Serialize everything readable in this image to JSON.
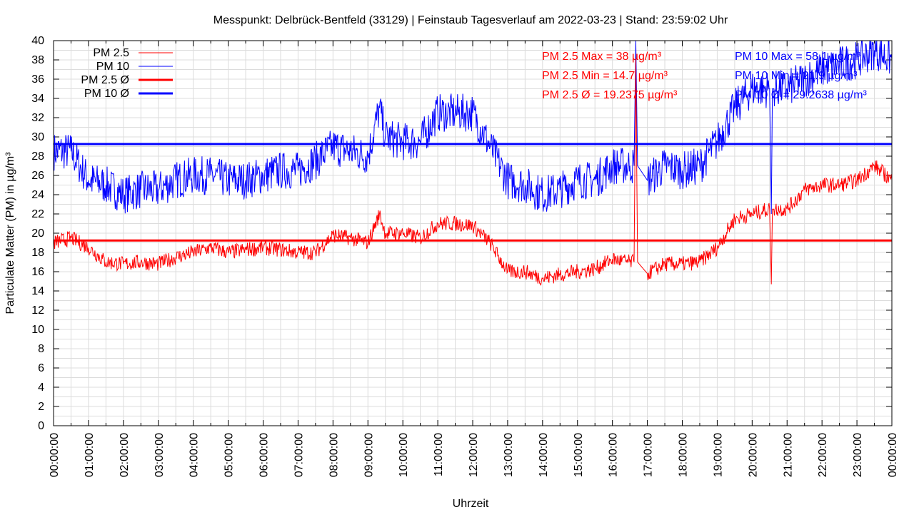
{
  "chart_data": {
    "type": "line",
    "title": "Messpunkt: Delbrück-Bentfeld (33129) | Feinstaub Tagesverlauf am 2022-03-23 | Stand: 23:59:02 Uhr",
    "xlabel": "Uhrzeit",
    "ylabel": "Particulate Matter (PM) in µg/m³",
    "ylim": [
      0,
      40
    ],
    "xlim_hours": [
      0,
      24
    ],
    "yticks": [
      "0",
      "2",
      "4",
      "6",
      "8",
      "10",
      "12",
      "14",
      "16",
      "18",
      "20",
      "22",
      "24",
      "26",
      "28",
      "30",
      "32",
      "34",
      "36",
      "38",
      "40"
    ],
    "xticks": [
      "00:00:00",
      "01:00:00",
      "02:00:00",
      "03:00:00",
      "04:00:00",
      "05:00:00",
      "06:00:00",
      "07:00:00",
      "08:00:00",
      "09:00:00",
      "10:00:00",
      "11:00:00",
      "12:00:00",
      "13:00:00",
      "14:00:00",
      "15:00:00",
      "16:00:00",
      "17:00:00",
      "18:00:00",
      "19:00:00",
      "20:00:00",
      "21:00:00",
      "22:00:00",
      "23:00:00",
      "00:00:00"
    ],
    "grid": true,
    "legend_position": "top-left",
    "legend": [
      "PM 2.5",
      "PM 10",
      "PM 2.5 Ø",
      "PM 10 Ø"
    ],
    "colors": {
      "pm25": "#ff0000",
      "pm10": "#0000ff"
    },
    "series": [
      {
        "name": "PM 2.5",
        "x": [
          0,
          0.5,
          1,
          1.5,
          2,
          2.5,
          3,
          3.5,
          4,
          4.5,
          5,
          5.5,
          6,
          6.5,
          7,
          7.5,
          8,
          8.5,
          9,
          9.33,
          9.5,
          10,
          10.5,
          11,
          11.5,
          12,
          12.5,
          13,
          13.5,
          14,
          14.5,
          15,
          15.5,
          16,
          16.5,
          16.62,
          16.67,
          16.72,
          17,
          17.5,
          18,
          18.5,
          19,
          19.5,
          20,
          20.5,
          20.55,
          20.58,
          20.62,
          21,
          21.5,
          22,
          22.5,
          23,
          23.5,
          24
        ],
        "values": [
          19,
          19.5,
          18.5,
          17,
          16.8,
          17,
          16.8,
          17.5,
          18,
          18.5,
          18,
          18.3,
          18.5,
          18.3,
          18,
          18,
          19.8,
          19.5,
          19,
          22,
          20,
          20,
          19.5,
          21,
          21,
          20.8,
          19,
          16,
          16,
          15.3,
          15.7,
          16,
          16.3,
          17.3,
          17,
          17,
          38,
          17,
          15.8,
          16.8,
          16.8,
          17,
          18.5,
          21.5,
          22,
          22.5,
          14.7,
          22.5,
          22.5,
          22.5,
          24.5,
          25,
          25,
          25.5,
          27,
          25.5
        ]
      },
      {
        "name": "PM 10",
        "x": [
          0,
          0.5,
          1,
          1.5,
          2,
          2.5,
          3,
          3.5,
          4,
          4.5,
          5,
          5.5,
          6,
          6.5,
          7,
          7.5,
          8,
          8.5,
          9,
          9.33,
          9.5,
          10,
          10.5,
          11,
          11.5,
          12,
          12.5,
          13,
          13.5,
          14,
          14.5,
          15,
          15.5,
          16,
          16.5,
          16.62,
          16.67,
          16.72,
          17,
          17.5,
          18,
          18.5,
          19,
          19.5,
          20,
          20.5,
          20.55,
          20.58,
          20.62,
          21,
          21.5,
          22,
          22.5,
          23,
          23.5,
          24
        ],
        "values": [
          28.5,
          28.5,
          25.5,
          25,
          24,
          24.5,
          24.5,
          25.5,
          26,
          26,
          25.5,
          25.5,
          26,
          26.5,
          26.5,
          27.5,
          29,
          28.5,
          28,
          33,
          30,
          29.5,
          29.5,
          32.5,
          32.5,
          32.5,
          29,
          25.5,
          25,
          24,
          24.5,
          25.5,
          25.5,
          27,
          27,
          27,
          58.1,
          27,
          25.5,
          27,
          26.5,
          27,
          29.5,
          33,
          35,
          35,
          22,
          35,
          35,
          35,
          36,
          37,
          37.5,
          38,
          39,
          38
        ]
      },
      {
        "name": "PM 2.5 Ø",
        "value": 19.2375
      },
      {
        "name": "PM 10 Ø",
        "value": 29.2638
      }
    ],
    "annotations": {
      "pm25_max": "PM 2.5 Max = 38 µg/m³",
      "pm25_min": "PM 2.5 Min = 14.7 µg/m³",
      "pm25_avg": "PM 2.5 Ø = 19.2375 µg/m³",
      "pm10_max": "PM 10 Max = 58.1 µg/m³",
      "pm10_min": "PM 10 Min = 21.9 µg/m³",
      "pm10_avg": "PM 10 Ø = 29.2638 µg/m³"
    }
  }
}
